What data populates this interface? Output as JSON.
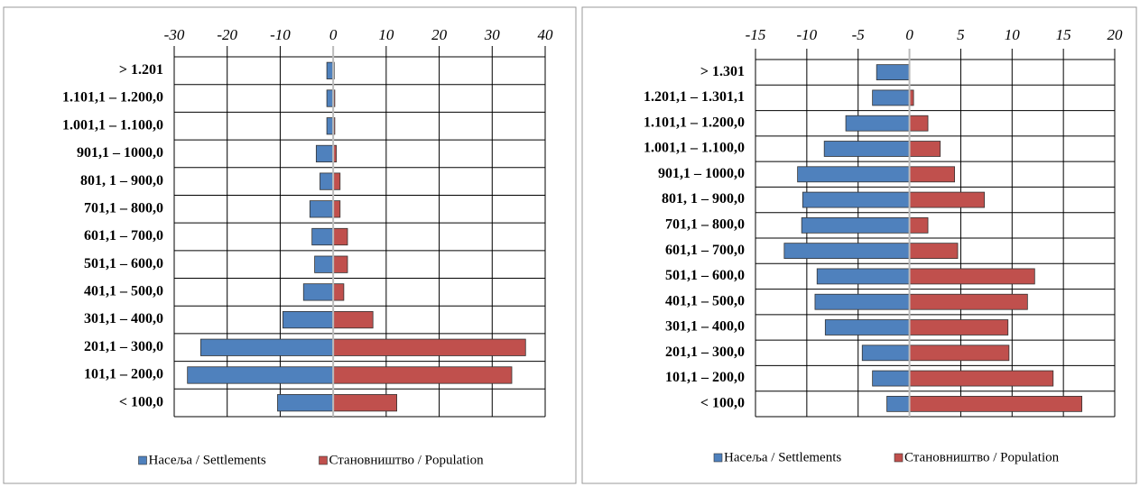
{
  "chart_data": [
    {
      "type": "bar",
      "orientation": "horizontal",
      "legend": "bottom",
      "grid": true,
      "categories": [
        "> 1.201",
        "1.101,1 – 1.200,0",
        "1.001,1 – 1.100,0",
        "901,1 – 1000,0",
        "801, 1 – 900,0",
        "701,1 – 800,0",
        "601,1 – 700,0",
        "501,1 – 600,0",
        "401,1 – 500,0",
        "301,1 – 400,0",
        "201,1 – 300,0",
        "101,1 – 200,0",
        "< 100,0"
      ],
      "series": [
        {
          "name": "Насеља / Settlements",
          "color": "#4f81bd",
          "values": [
            -1.2,
            -1.2,
            -1.2,
            -3.2,
            -2.5,
            -4.4,
            -4,
            -3.5,
            -5.6,
            -9.5,
            -25,
            -27.5,
            -10.5
          ]
        },
        {
          "name": "Становништво / Population",
          "color": "#c0504d",
          "values": [
            0.2,
            0.3,
            0.3,
            0.6,
            1.3,
            1.3,
            2.7,
            2.7,
            2,
            7.5,
            36.3,
            33.7,
            12
          ]
        }
      ],
      "xlim": [
        -30,
        40
      ],
      "xticks": [
        -30,
        -20,
        -10,
        0,
        10,
        20,
        30,
        40
      ]
    },
    {
      "type": "bar",
      "orientation": "horizontal",
      "legend": "bottom",
      "grid": true,
      "categories": [
        "> 1.301",
        "1.201,1 – 1.301,1",
        "1.101,1 – 1.200,0",
        "1.001,1 – 1.100,0",
        "901,1 – 1000,0",
        "801, 1 – 900,0",
        "701,1 – 800,0",
        "601,1 – 700,0",
        "501,1 – 600,0",
        "401,1 – 500,0",
        "301,1 – 400,0",
        "201,1 – 300,0",
        "101,1 – 200,0",
        "< 100,0"
      ],
      "series": [
        {
          "name": "Насеља / Settlements",
          "color": "#4f81bd",
          "values": [
            -3.2,
            -3.6,
            -6.2,
            -8.3,
            -10.9,
            -10.4,
            -10.5,
            -12.2,
            -9,
            -9.2,
            -8.2,
            -4.6,
            -3.6,
            -2.2
          ]
        },
        {
          "name": "Становништво / Population",
          "color": "#c0504d",
          "values": [
            0,
            0.4,
            1.8,
            3,
            4.4,
            7.3,
            1.8,
            4.7,
            12.2,
            11.5,
            9.6,
            9.7,
            14,
            16.8
          ]
        }
      ],
      "xlim": [
        -15,
        20
      ],
      "xticks": [
        -15,
        -10,
        -5,
        0,
        5,
        10,
        15,
        20
      ]
    }
  ]
}
